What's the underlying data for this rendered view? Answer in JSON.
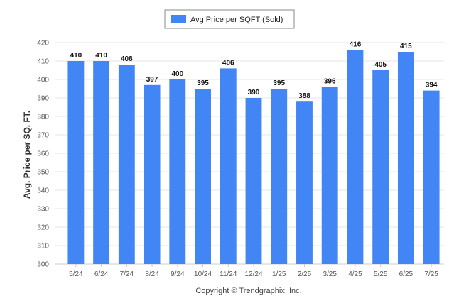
{
  "colors": {
    "bar": "#4285F4",
    "grid": "#e6e6e6",
    "axis": "#cccccc"
  },
  "legend": {
    "label": "Avg Price per SQFT (Sold)"
  },
  "footer": {
    "text": "Copyright © Trendgraphix, Inc."
  },
  "chart_data": {
    "type": "bar",
    "ylabel": "Avg. Price per SQ. FT.",
    "ylim": [
      300,
      420
    ],
    "ytick_step": 10,
    "grid": true,
    "legend_position": "top-center",
    "categories": [
      "5/24",
      "6/24",
      "7/24",
      "8/24",
      "9/24",
      "10/24",
      "11/24",
      "12/24",
      "1/25",
      "2/25",
      "3/25",
      "4/25",
      "5/25",
      "6/25",
      "7/25"
    ],
    "series": [
      {
        "name": "Avg Price per SQFT (Sold)",
        "values": [
          410,
          410,
          408,
          397,
          400,
          395,
          406,
          390,
          395,
          388,
          396,
          416,
          405,
          415,
          394
        ]
      }
    ]
  }
}
